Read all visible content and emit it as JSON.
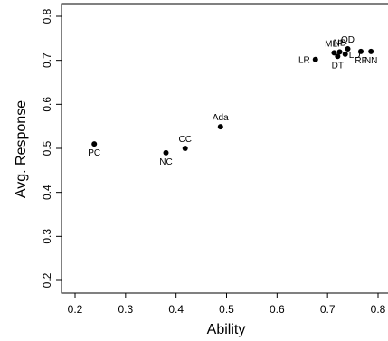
{
  "chart_data": {
    "type": "scatter",
    "title": "",
    "xlabel": "Ability",
    "ylabel": "Avg. Response",
    "xlim": [
      0.2,
      0.8
    ],
    "ylim": [
      0.2,
      0.8
    ],
    "x_ticks": [
      "0.2",
      "0.3",
      "0.4",
      "0.5",
      "0.6",
      "0.7",
      "0.8"
    ],
    "y_ticks": [
      "0.2",
      "0.3",
      "0.4",
      "0.5",
      "0.6",
      "0.7",
      "0.8"
    ],
    "grid": false,
    "points": [
      {
        "label": "PC",
        "x": 0.238,
        "y": 0.51,
        "label_pos": "below"
      },
      {
        "label": "NC",
        "x": 0.38,
        "y": 0.49,
        "label_pos": "below"
      },
      {
        "label": "CC",
        "x": 0.418,
        "y": 0.5,
        "label_pos": "above"
      },
      {
        "label": "Ada",
        "x": 0.488,
        "y": 0.549,
        "label_pos": "above"
      },
      {
        "label": "LR",
        "x": 0.676,
        "y": 0.702,
        "label_pos": "left"
      },
      {
        "label": "MLP",
        "x": 0.713,
        "y": 0.717,
        "label_pos": "above"
      },
      {
        "label": "NB",
        "x": 0.724,
        "y": 0.719,
        "label_pos": "above"
      },
      {
        "label": "DT",
        "x": 0.72,
        "y": 0.709,
        "label_pos": "below"
      },
      {
        "label": "QD",
        "x": 0.74,
        "y": 0.726,
        "label_pos": "above"
      },
      {
        "label": "LD",
        "x": 0.735,
        "y": 0.714,
        "label_pos": "right"
      },
      {
        "label": "RF",
        "x": 0.766,
        "y": 0.72,
        "label_pos": "below"
      },
      {
        "label": "NN",
        "x": 0.786,
        "y": 0.72,
        "label_pos": "below"
      }
    ]
  }
}
